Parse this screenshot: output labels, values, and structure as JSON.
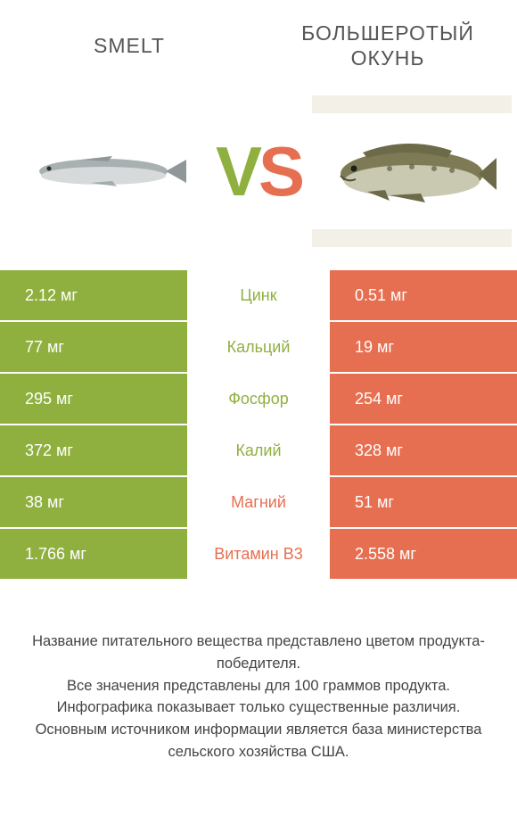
{
  "header": {
    "left_title": "SMELT",
    "right_title": "БОЛЬШЕРОТЫЙ ОКУНЬ"
  },
  "vs": {
    "v": "V",
    "s": "S"
  },
  "colors": {
    "left": "#8fb03f",
    "right": "#e76f51",
    "frame": "#f3f0e7",
    "bg": "#ffffff"
  },
  "fish_left": {
    "body": "#a9b0b2",
    "belly": "#d6dadb",
    "tail": "#8f9799",
    "eye": "#2b2b2b"
  },
  "fish_right": {
    "body": "#7d7a55",
    "belly": "#c9c8b0",
    "fin": "#6c6a48",
    "eye": "#1e1e1e",
    "spot": "#4f4d33"
  },
  "rows": [
    {
      "nutrient": "Цинк",
      "left": "2.12 мг",
      "right": "0.51 мг",
      "winner": "left"
    },
    {
      "nutrient": "Кальций",
      "left": "77 мг",
      "right": "19 мг",
      "winner": "left"
    },
    {
      "nutrient": "Фосфор",
      "left": "295 мг",
      "right": "254 мг",
      "winner": "left"
    },
    {
      "nutrient": "Калий",
      "left": "372 мг",
      "right": "328 мг",
      "winner": "left"
    },
    {
      "nutrient": "Магний",
      "left": "38 мг",
      "right": "51 мг",
      "winner": "right"
    },
    {
      "nutrient": "Витамин B3",
      "left": "1.766 мг",
      "right": "2.558 мг",
      "winner": "right"
    }
  ],
  "footer": {
    "line1": "Название питательного вещества представлено цветом продукта-победителя.",
    "line2": "Все значения представлены для 100 граммов продукта.",
    "line3": "Инфографика показывает только существенные различия.",
    "line4": "Основным источником информации является база министерства сельского хозяйства США."
  }
}
